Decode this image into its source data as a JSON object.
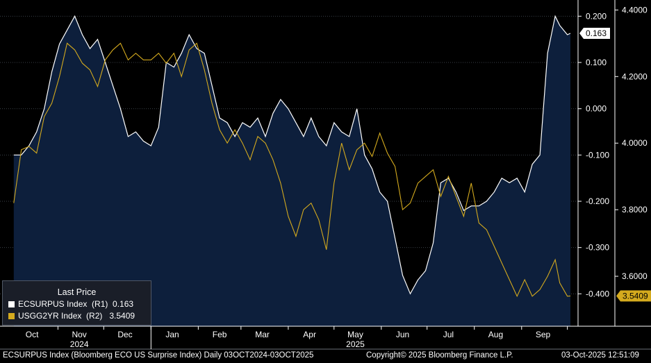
{
  "chart_data": {
    "type": "line",
    "series": [
      {
        "name": "ECSURPUS Index",
        "axis": "R1",
        "color": "#ffffff",
        "fill": "#0d1f3c",
        "x": [
          "2024-10-03",
          "2024-10-08",
          "2024-10-13",
          "2024-10-18",
          "2024-10-23",
          "2024-10-28",
          "2024-11-02",
          "2024-11-07",
          "2024-11-12",
          "2024-11-17",
          "2024-11-22",
          "2024-11-27",
          "2024-12-02",
          "2024-12-07",
          "2024-12-12",
          "2024-12-17",
          "2024-12-22",
          "2024-12-27",
          "2025-01-01",
          "2025-01-06",
          "2025-01-11",
          "2025-01-16",
          "2025-01-21",
          "2025-01-26",
          "2025-01-31",
          "2025-02-05",
          "2025-02-10",
          "2025-02-15",
          "2025-02-20",
          "2025-02-25",
          "2025-03-02",
          "2025-03-07",
          "2025-03-12",
          "2025-03-17",
          "2025-03-22",
          "2025-03-27",
          "2025-04-01",
          "2025-04-06",
          "2025-04-11",
          "2025-04-16",
          "2025-04-21",
          "2025-04-26",
          "2025-05-01",
          "2025-05-06",
          "2025-05-11",
          "2025-05-16",
          "2025-05-21",
          "2025-05-26",
          "2025-05-31",
          "2025-06-05",
          "2025-06-10",
          "2025-06-15",
          "2025-06-20",
          "2025-06-25",
          "2025-06-30",
          "2025-07-05",
          "2025-07-10",
          "2025-07-15",
          "2025-07-20",
          "2025-07-25",
          "2025-07-30",
          "2025-08-04",
          "2025-08-09",
          "2025-08-14",
          "2025-08-19",
          "2025-08-24",
          "2025-08-29",
          "2025-09-03",
          "2025-09-08",
          "2025-09-13",
          "2025-09-18",
          "2025-09-23",
          "2025-09-26",
          "2025-10-01",
          "2025-10-03"
        ],
        "values": [
          -0.1,
          -0.1,
          -0.08,
          -0.05,
          0.0,
          0.08,
          0.14,
          0.17,
          0.2,
          0.16,
          0.13,
          0.15,
          0.1,
          0.05,
          0.0,
          -0.06,
          -0.05,
          -0.07,
          -0.08,
          -0.04,
          0.1,
          0.09,
          0.12,
          0.16,
          0.13,
          0.12,
          0.05,
          -0.02,
          -0.03,
          -0.06,
          -0.03,
          -0.04,
          -0.02,
          -0.06,
          -0.01,
          0.02,
          0.0,
          -0.03,
          -0.06,
          -0.02,
          -0.06,
          -0.08,
          -0.03,
          -0.05,
          -0.06,
          0.0,
          -0.1,
          -0.13,
          -0.18,
          -0.2,
          -0.28,
          -0.36,
          -0.4,
          -0.37,
          -0.35,
          -0.29,
          -0.16,
          -0.15,
          -0.18,
          -0.22,
          -0.21,
          -0.21,
          -0.2,
          -0.18,
          -0.15,
          -0.16,
          -0.15,
          -0.18,
          -0.12,
          -0.1,
          0.12,
          0.2,
          0.18,
          0.16,
          0.163
        ]
      },
      {
        "name": "USGG2YR Index",
        "axis": "R2",
        "color": "#d4aa1e",
        "x": [
          "2024-10-03",
          "2024-10-08",
          "2024-10-13",
          "2024-10-18",
          "2024-10-23",
          "2024-10-28",
          "2024-11-02",
          "2024-11-07",
          "2024-11-12",
          "2024-11-17",
          "2024-11-22",
          "2024-11-27",
          "2024-12-02",
          "2024-12-07",
          "2024-12-12",
          "2024-12-17",
          "2024-12-22",
          "2024-12-27",
          "2025-01-01",
          "2025-01-06",
          "2025-01-11",
          "2025-01-16",
          "2025-01-21",
          "2025-01-26",
          "2025-01-31",
          "2025-02-05",
          "2025-02-10",
          "2025-02-15",
          "2025-02-20",
          "2025-02-25",
          "2025-03-02",
          "2025-03-07",
          "2025-03-12",
          "2025-03-17",
          "2025-03-22",
          "2025-03-27",
          "2025-04-01",
          "2025-04-06",
          "2025-04-11",
          "2025-04-16",
          "2025-04-21",
          "2025-04-26",
          "2025-05-01",
          "2025-05-06",
          "2025-05-11",
          "2025-05-16",
          "2025-05-21",
          "2025-05-26",
          "2025-05-31",
          "2025-06-05",
          "2025-06-10",
          "2025-06-15",
          "2025-06-20",
          "2025-06-25",
          "2025-06-30",
          "2025-07-05",
          "2025-07-10",
          "2025-07-15",
          "2025-07-20",
          "2025-07-25",
          "2025-07-30",
          "2025-08-04",
          "2025-08-09",
          "2025-08-14",
          "2025-08-19",
          "2025-08-24",
          "2025-08-29",
          "2025-09-03",
          "2025-09-08",
          "2025-09-13",
          "2025-09-18",
          "2025-09-23",
          "2025-09-26",
          "2025-10-01",
          "2025-10-03"
        ],
        "values": [
          3.82,
          3.98,
          3.99,
          3.97,
          4.08,
          4.12,
          4.2,
          4.3,
          4.28,
          4.24,
          4.22,
          4.17,
          4.25,
          4.28,
          4.3,
          4.25,
          4.27,
          4.25,
          4.25,
          4.27,
          4.24,
          4.27,
          4.2,
          4.28,
          4.3,
          4.22,
          4.12,
          4.04,
          4.0,
          4.04,
          4.0,
          3.95,
          4.02,
          4.0,
          3.95,
          3.88,
          3.78,
          3.72,
          3.8,
          3.82,
          3.77,
          3.68,
          3.88,
          4.0,
          3.92,
          3.98,
          4.0,
          3.96,
          4.03,
          3.97,
          3.93,
          3.8,
          3.82,
          3.88,
          3.9,
          3.92,
          3.84,
          3.9,
          3.84,
          3.78,
          3.88,
          3.76,
          3.74,
          3.69,
          3.64,
          3.59,
          3.54,
          3.59,
          3.54,
          3.56,
          3.6,
          3.65,
          3.58,
          3.54,
          3.5409
        ]
      }
    ],
    "axes": {
      "R1": {
        "ylim": [
          -0.47,
          0.235
        ],
        "ticks": [
          "0.200",
          "0.100",
          "0.000",
          "-0.100",
          "-0.200",
          "-0.300",
          "-0.400"
        ]
      },
      "R2": {
        "ylim": [
          3.45,
          4.43
        ],
        "ticks": [
          "4.4000",
          "4.2000",
          "4.0000",
          "3.8000",
          "3.6000"
        ]
      },
      "x": {
        "range": [
          "2024-09-24",
          "2025-10-08"
        ],
        "months": [
          {
            "label": "Oct",
            "date": "2024-10-15"
          },
          {
            "label": "Nov",
            "date": "2024-11-15"
          },
          {
            "label": "Dec",
            "date": "2024-12-15"
          },
          {
            "label": "Jan",
            "date": "2025-01-15"
          },
          {
            "label": "Feb",
            "date": "2025-02-15"
          },
          {
            "label": "Mar",
            "date": "2025-03-15"
          },
          {
            "label": "Apr",
            "date": "2025-04-15"
          },
          {
            "label": "May",
            "date": "2025-05-15"
          },
          {
            "label": "Jun",
            "date": "2025-06-15"
          },
          {
            "label": "Jul",
            "date": "2025-07-15"
          },
          {
            "label": "Aug",
            "date": "2025-08-15"
          },
          {
            "label": "Sep",
            "date": "2025-09-15"
          }
        ],
        "years": [
          {
            "label": "2024",
            "date": "2024-11-15"
          },
          {
            "label": "2025",
            "date": "2025-05-15"
          }
        ]
      }
    },
    "last_price_labels": [
      {
        "series": "ECSURPUS Index",
        "text": "0.163",
        "value": 0.163,
        "axis": "R1",
        "bg": "#ffffff",
        "fg": "#000000"
      },
      {
        "series": "USGG2YR Index",
        "text": "3.5409",
        "value": 3.5409,
        "axis": "R2",
        "bg": "#d4aa1e",
        "fg": "#000000"
      }
    ],
    "grid": true,
    "legend_position": "bottom-left"
  },
  "legend": {
    "title": "Last Price",
    "row1": "ECSURPUS Index  (R1)  0.163",
    "row2": "USGG2YR Index  (R2)   3.5409"
  },
  "footer": {
    "left": "ECSURPUS Index (Bloomberg ECO US Surprise Index) Daily 03OCT2024-03OCT2025",
    "center": "Copyright© 2025 Bloomberg Finance L.P.",
    "right": "03-Oct-2025 12:51:09"
  }
}
